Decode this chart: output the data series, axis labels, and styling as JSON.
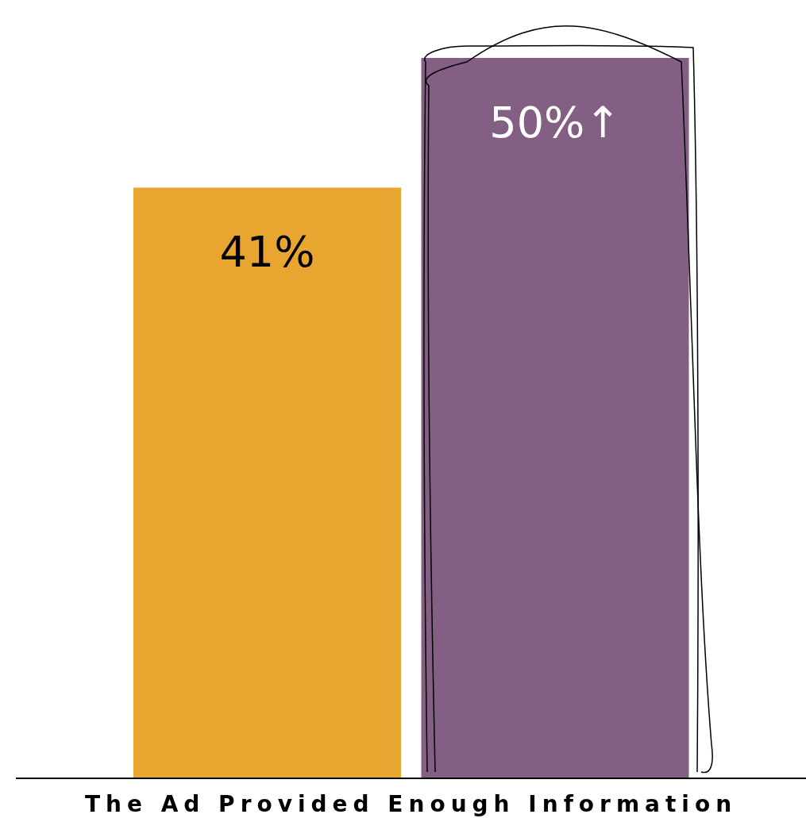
{
  "chart_data": {
    "type": "bar",
    "xlabel": "The Ad Provided Enough Information",
    "categories": [
      null,
      null
    ],
    "values": [
      41,
      50
    ],
    "colors": [
      "#e8a530",
      "#836083"
    ],
    "value_labels": [
      "41%",
      "50%↑"
    ]
  }
}
